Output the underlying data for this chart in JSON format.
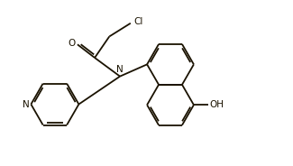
{
  "bg_color": "#ffffff",
  "line_color": "#1a1200",
  "lw": 1.3,
  "fs": 7.5,
  "xlim": [
    0,
    10
  ],
  "ylim": [
    0,
    6.2
  ]
}
